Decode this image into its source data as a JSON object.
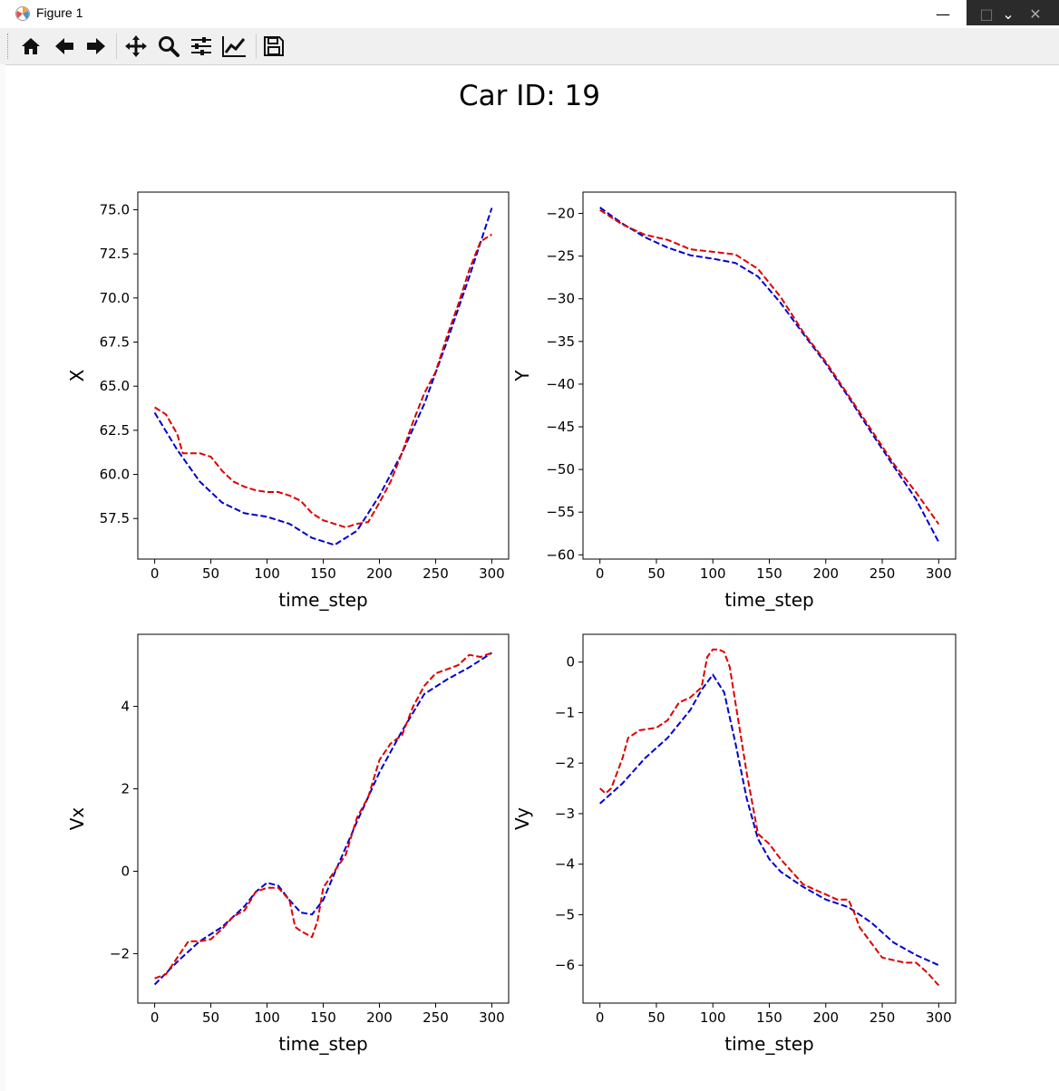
{
  "window": {
    "title": "Figure 1",
    "minimize_glyph": "—",
    "maximize_glyph": "□",
    "chevron_glyph": "⌄",
    "close_glyph": "✕"
  },
  "toolbar": {
    "buttons": [
      "home-icon",
      "back-icon",
      "forward-icon",
      "pan-icon",
      "zoom-icon",
      "configure-subplots-icon",
      "edit-axis-icon",
      "save-icon"
    ]
  },
  "colors": {
    "series_blue": "#0000cc",
    "series_red": "#dd0000"
  },
  "figure_title": "Car ID: 19",
  "chart_data": [
    {
      "type": "line",
      "xlabel": "time_step",
      "ylabel": "X",
      "xlim": [
        -15,
        315
      ],
      "ylim": [
        55.2,
        76.0
      ],
      "xticks": [
        0,
        50,
        100,
        150,
        200,
        250,
        300
      ],
      "yticks": [
        57.5,
        60.0,
        62.5,
        65.0,
        67.5,
        70.0,
        72.5,
        75.0
      ],
      "ytick_labels": [
        "57.5",
        "60.0",
        "62.5",
        "65.0",
        "67.5",
        "70.0",
        "72.5",
        "75.0"
      ],
      "series": [
        {
          "color": "#0000cc",
          "style": "dashed",
          "x": [
            0,
            20,
            40,
            60,
            80,
            100,
            120,
            140,
            160,
            180,
            200,
            220,
            240,
            260,
            280,
            300
          ],
          "values": [
            63.5,
            61.4,
            59.6,
            58.4,
            57.8,
            57.6,
            57.2,
            56.4,
            56.0,
            56.8,
            58.8,
            61.2,
            64.0,
            67.5,
            71.2,
            75.1
          ]
        },
        {
          "color": "#dd0000",
          "style": "dashed",
          "x": [
            0,
            10,
            20,
            25,
            40,
            50,
            60,
            70,
            80,
            90,
            100,
            110,
            120,
            130,
            140,
            150,
            160,
            170,
            180,
            190,
            200,
            210,
            220,
            230,
            240,
            250,
            260,
            270,
            280,
            290,
            300
          ],
          "values": [
            63.8,
            63.4,
            62.3,
            61.2,
            61.2,
            61.0,
            60.2,
            59.6,
            59.3,
            59.1,
            59.0,
            59.0,
            58.8,
            58.5,
            57.8,
            57.4,
            57.2,
            57.0,
            57.2,
            57.3,
            58.4,
            59.6,
            61.2,
            63.0,
            64.6,
            65.8,
            67.8,
            69.6,
            71.6,
            73.2,
            73.6
          ]
        }
      ]
    },
    {
      "type": "line",
      "xlabel": "time_step",
      "ylabel": "Y",
      "xlim": [
        -15,
        315
      ],
      "ylim": [
        -60.5,
        -17.5
      ],
      "xticks": [
        0,
        50,
        100,
        150,
        200,
        250,
        300
      ],
      "yticks": [
        -60,
        -55,
        -50,
        -45,
        -40,
        -35,
        -30,
        -25,
        -20
      ],
      "ytick_labels": [
        "−60",
        "−55",
        "−50",
        "−45",
        "−40",
        "−35",
        "−30",
        "−25",
        "−20"
      ],
      "series": [
        {
          "color": "#0000cc",
          "style": "dashed",
          "x": [
            0,
            20,
            40,
            60,
            80,
            100,
            120,
            140,
            160,
            180,
            200,
            220,
            240,
            260,
            280,
            300
          ],
          "values": [
            -19.3,
            -21.2,
            -22.8,
            -24.0,
            -24.9,
            -25.3,
            -25.8,
            -27.4,
            -30.5,
            -34.1,
            -37.6,
            -41.5,
            -45.6,
            -49.6,
            -53.5,
            -58.5
          ]
        },
        {
          "color": "#dd0000",
          "style": "dashed",
          "x": [
            0,
            20,
            40,
            60,
            80,
            100,
            120,
            140,
            160,
            180,
            200,
            220,
            240,
            260,
            280,
            300
          ],
          "values": [
            -19.6,
            -21.3,
            -22.5,
            -23.1,
            -24.2,
            -24.5,
            -24.8,
            -26.5,
            -29.8,
            -33.9,
            -37.4,
            -41.3,
            -45.3,
            -49.3,
            -52.7,
            -56.4
          ]
        }
      ]
    },
    {
      "type": "line",
      "xlabel": "time_step",
      "ylabel": "Vx",
      "xlim": [
        -15,
        315
      ],
      "ylim": [
        -3.2,
        5.75
      ],
      "xticks": [
        0,
        50,
        100,
        150,
        200,
        250,
        300
      ],
      "yticks": [
        -2,
        0,
        2,
        4
      ],
      "ytick_labels": [
        "−2",
        "0",
        "2",
        "4"
      ],
      "series": [
        {
          "color": "#0000cc",
          "style": "dashed",
          "x": [
            0,
            20,
            40,
            60,
            80,
            90,
            100,
            110,
            120,
            130,
            140,
            150,
            160,
            180,
            200,
            220,
            240,
            260,
            280,
            300
          ],
          "values": [
            -2.75,
            -2.2,
            -1.7,
            -1.35,
            -0.85,
            -0.5,
            -0.28,
            -0.35,
            -0.7,
            -1.0,
            -1.05,
            -0.7,
            -0.05,
            1.2,
            2.4,
            3.4,
            4.3,
            4.65,
            4.95,
            5.3
          ]
        },
        {
          "color": "#dd0000",
          "style": "dashed",
          "x": [
            0,
            10,
            20,
            30,
            40,
            50,
            60,
            70,
            80,
            90,
            100,
            110,
            120,
            125,
            130,
            140,
            145,
            150,
            160,
            170,
            180,
            190,
            200,
            210,
            220,
            230,
            240,
            250,
            260,
            270,
            280,
            290,
            300
          ],
          "values": [
            -2.6,
            -2.5,
            -2.1,
            -1.7,
            -1.7,
            -1.65,
            -1.4,
            -1.1,
            -0.95,
            -0.5,
            -0.4,
            -0.4,
            -0.7,
            -1.35,
            -1.45,
            -1.6,
            -1.2,
            -0.4,
            0.0,
            0.4,
            1.3,
            1.8,
            2.7,
            3.1,
            3.3,
            4.0,
            4.5,
            4.8,
            4.9,
            5.0,
            5.25,
            5.2,
            5.3
          ]
        }
      ]
    },
    {
      "type": "line",
      "xlabel": "time_step",
      "ylabel": "Vy",
      "xlim": [
        -15,
        315
      ],
      "ylim": [
        -6.75,
        0.55
      ],
      "xticks": [
        0,
        50,
        100,
        150,
        200,
        250,
        300
      ],
      "yticks": [
        -6,
        -5,
        -4,
        -3,
        -2,
        -1,
        0
      ],
      "ytick_labels": [
        "−6",
        "−5",
        "−4",
        "−3",
        "−2",
        "−1",
        "0"
      ],
      "series": [
        {
          "color": "#0000cc",
          "style": "dashed",
          "x": [
            0,
            20,
            40,
            60,
            80,
            90,
            100,
            110,
            120,
            130,
            140,
            150,
            160,
            180,
            200,
            220,
            240,
            260,
            280,
            300
          ],
          "values": [
            -2.8,
            -2.4,
            -1.9,
            -1.5,
            -0.95,
            -0.55,
            -0.25,
            -0.6,
            -1.6,
            -2.7,
            -3.5,
            -3.9,
            -4.15,
            -4.45,
            -4.7,
            -4.85,
            -5.15,
            -5.55,
            -5.8,
            -6.0
          ]
        },
        {
          "color": "#dd0000",
          "style": "dashed",
          "x": [
            0,
            5,
            10,
            15,
            20,
            25,
            35,
            50,
            60,
            70,
            80,
            90,
            95,
            100,
            105,
            110,
            115,
            120,
            125,
            130,
            140,
            150,
            160,
            170,
            180,
            190,
            200,
            210,
            220,
            225,
            230,
            240,
            250,
            260,
            270,
            280,
            290,
            300
          ],
          "values": [
            -2.5,
            -2.6,
            -2.5,
            -2.2,
            -1.9,
            -1.5,
            -1.35,
            -1.3,
            -1.15,
            -0.8,
            -0.7,
            -0.5,
            0.1,
            0.25,
            0.25,
            0.2,
            -0.1,
            -0.8,
            -1.5,
            -2.2,
            -3.4,
            -3.6,
            -3.9,
            -4.15,
            -4.4,
            -4.5,
            -4.6,
            -4.7,
            -4.7,
            -4.95,
            -5.25,
            -5.55,
            -5.85,
            -5.9,
            -5.95,
            -5.95,
            -6.15,
            -6.4
          ]
        }
      ]
    }
  ]
}
